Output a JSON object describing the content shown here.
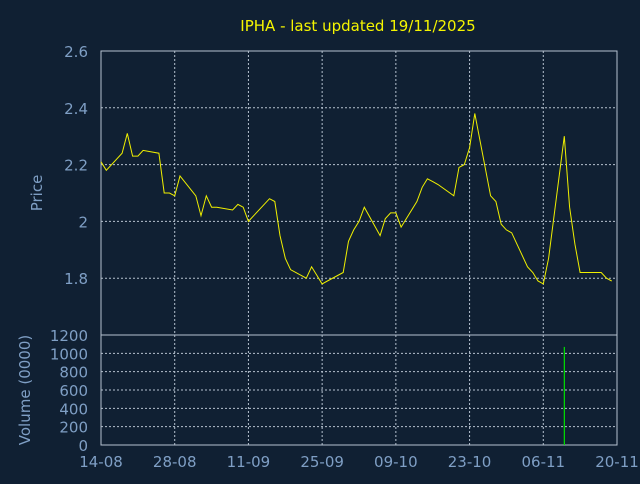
{
  "colors": {
    "background": "#102033",
    "axis_text": "#7f9fc5",
    "title": "#f5f500",
    "grid": "#b6c2d0",
    "price_line": "#f0f000",
    "volume_bar": "#00e000"
  },
  "chart_data": [
    {
      "type": "line",
      "title": "IPHA - last updated 19/11/2025",
      "ylabel": "Price",
      "ylim": [
        1.6,
        2.6
      ],
      "yticks": [
        1.8,
        2.0,
        2.2,
        2.4,
        2.6
      ],
      "ytick_labels": [
        "1.8",
        "2",
        "2.2",
        "2.4",
        "2.6"
      ],
      "grid": true,
      "series": [
        {
          "x": [
            "2025-08-14",
            "2025-08-15",
            "2025-08-18",
            "2025-08-19",
            "2025-08-20",
            "2025-08-21",
            "2025-08-22",
            "2025-08-25",
            "2025-08-26",
            "2025-08-27",
            "2025-08-28",
            "2025-08-29",
            "2025-09-01",
            "2025-09-02",
            "2025-09-03",
            "2025-09-04",
            "2025-09-05",
            "2025-09-08",
            "2025-09-09",
            "2025-09-10",
            "2025-09-11",
            "2025-09-12",
            "2025-09-15",
            "2025-09-16",
            "2025-09-17",
            "2025-09-18",
            "2025-09-19",
            "2025-09-22",
            "2025-09-23",
            "2025-09-24",
            "2025-09-25",
            "2025-09-26",
            "2025-09-29",
            "2025-09-30",
            "2025-10-01",
            "2025-10-02",
            "2025-10-03",
            "2025-10-06",
            "2025-10-07",
            "2025-10-08",
            "2025-10-09",
            "2025-10-10",
            "2025-10-13",
            "2025-10-14",
            "2025-10-15",
            "2025-10-16",
            "2025-10-17",
            "2025-10-20",
            "2025-10-21",
            "2025-10-22",
            "2025-10-23",
            "2025-10-24",
            "2025-10-27",
            "2025-10-28",
            "2025-10-29",
            "2025-10-30",
            "2025-10-31",
            "2025-11-03",
            "2025-11-04",
            "2025-11-05",
            "2025-11-06",
            "2025-11-07",
            "2025-11-10",
            "2025-11-11",
            "2025-11-12",
            "2025-11-13",
            "2025-11-14",
            "2025-11-17",
            "2025-11-18",
            "2025-11-19"
          ],
          "values": [
            2.21,
            2.18,
            2.24,
            2.31,
            2.23,
            2.23,
            2.25,
            2.24,
            2.1,
            2.1,
            2.09,
            2.16,
            2.09,
            2.02,
            2.09,
            2.05,
            2.05,
            2.04,
            2.06,
            2.05,
            2.0,
            2.02,
            2.08,
            2.07,
            1.95,
            1.87,
            1.83,
            1.8,
            1.84,
            1.81,
            1.78,
            1.79,
            1.82,
            1.93,
            1.97,
            2.0,
            2.05,
            1.95,
            2.01,
            2.03,
            2.03,
            1.98,
            2.07,
            2.12,
            2.15,
            2.14,
            2.13,
            2.09,
            2.19,
            2.2,
            2.26,
            2.38,
            2.09,
            2.07,
            1.99,
            1.97,
            1.96,
            1.84,
            1.82,
            1.79,
            1.78,
            1.87,
            2.3,
            2.05,
            1.92,
            1.82,
            1.82,
            1.82,
            1.8,
            1.79
          ]
        }
      ]
    },
    {
      "type": "bar",
      "ylabel": "Volume (0000)",
      "ylim": [
        0,
        1200
      ],
      "yticks": [
        0,
        200,
        400,
        600,
        800,
        1000,
        1200
      ],
      "ytick_labels": [
        "0",
        "200",
        "400",
        "600",
        "800",
        "1000",
        "1200"
      ],
      "grid": true,
      "x_tick_labels": [
        "14-08",
        "28-08",
        "11-09",
        "25-09",
        "09-10",
        "23-10",
        "06-11",
        "20-11"
      ],
      "x_tick_dates": [
        "2025-08-14",
        "2025-08-28",
        "2025-09-11",
        "2025-09-25",
        "2025-10-09",
        "2025-10-23",
        "2025-11-06",
        "2025-11-20"
      ],
      "series": [
        {
          "x": [
            "2025-11-10"
          ],
          "values": [
            1070
          ]
        }
      ]
    }
  ]
}
